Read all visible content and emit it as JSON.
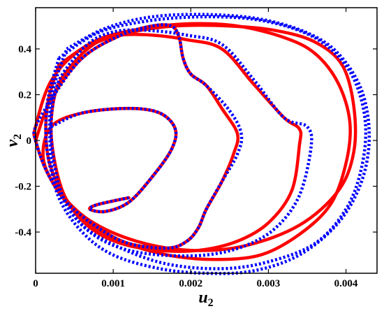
{
  "chart_data": {
    "type": "line",
    "title": "",
    "xlabel": "u",
    "xlabel_sub": "2",
    "ylabel": "v",
    "ylabel_sub": "2",
    "xlim": [
      0,
      0.0044
    ],
    "ylim": [
      -0.58,
      0.58
    ],
    "xticks": [
      {
        "v": 0,
        "label": "0"
      },
      {
        "v": 0.001,
        "label": "0.001"
      },
      {
        "v": 0.002,
        "label": "0.002"
      },
      {
        "v": 0.003,
        "label": "0.003"
      },
      {
        "v": 0.004,
        "label": "0.004"
      }
    ],
    "yticks": [
      {
        "v": -0.4,
        "label": "-0.4"
      },
      {
        "v": -0.2,
        "label": "-0.2"
      },
      {
        "v": 0,
        "label": "0"
      },
      {
        "v": 0.2,
        "label": "0.2"
      },
      {
        "v": 0.4,
        "label": "0.4"
      }
    ],
    "grid": false,
    "legend": "none",
    "series": [
      {
        "style": "solid",
        "color": "#ff0000",
        "x": [
          0.0,
          0.0002,
          0.0006,
          0.0011,
          0.0015,
          0.00175,
          0.00185,
          0.0019,
          0.002,
          0.0022,
          0.0024,
          0.0026,
          0.00255,
          0.0024,
          0.0022,
          0.0021,
          0.00195,
          0.0017,
          0.0012,
          0.0008,
          0.0004,
          0.00015,
          0.0,
          0.0,
          0.0002,
          0.0006,
          0.0012,
          0.0018,
          0.0025,
          0.0031,
          0.0036,
          0.00395,
          0.0041,
          0.0041,
          0.0039,
          0.0034,
          0.0027,
          0.002,
          0.0013,
          0.0007,
          0.0003,
          0.0001,
          0.0002,
          0.0006,
          0.0012,
          0.0016,
          0.0018,
          0.00175,
          0.0015,
          0.0012,
          0.0009,
          0.0007,
          0.0008,
          0.0012
        ],
        "y": [
          0.0,
          0.18,
          0.36,
          0.46,
          0.5,
          0.5,
          0.45,
          0.36,
          0.29,
          0.24,
          0.14,
          0.03,
          -0.06,
          -0.18,
          -0.3,
          -0.38,
          -0.44,
          -0.47,
          -0.45,
          -0.38,
          -0.27,
          -0.14,
          0.0,
          0.06,
          0.26,
          0.4,
          0.47,
          0.5,
          0.5,
          0.48,
          0.43,
          0.33,
          0.15,
          -0.05,
          -0.22,
          -0.37,
          -0.46,
          -0.48,
          -0.44,
          -0.35,
          -0.22,
          -0.08,
          0.06,
          0.12,
          0.14,
          0.12,
          0.05,
          -0.04,
          -0.16,
          -0.27,
          -0.31,
          -0.3,
          -0.28,
          -0.25
        ]
      },
      {
        "style": "solid",
        "color": "#ff0000",
        "x": [
          0.0006,
          0.0008,
          0.0011,
          0.0015,
          0.00195,
          0.0024,
          0.0028,
          0.0032,
          0.0034,
          0.0034,
          0.0033,
          0.003,
          0.0026,
          0.0021,
          0.0016,
          0.0011,
          0.0007,
          0.0004,
          0.00025,
          0.0002,
          0.0003,
          0.0006
        ],
        "y": [
          0.38,
          0.43,
          0.46,
          0.46,
          0.44,
          0.4,
          0.25,
          0.1,
          0.05,
          -0.02,
          -0.22,
          -0.36,
          -0.44,
          -0.48,
          -0.48,
          -0.45,
          -0.38,
          -0.26,
          -0.1,
          0.08,
          0.25,
          0.38
        ]
      },
      {
        "style": "solid",
        "color": "#ff0000",
        "x": [
          0.0003,
          0.0008,
          0.0014,
          0.002,
          0.0026,
          0.0032,
          0.0036,
          0.0039,
          0.00405,
          0.004,
          0.0038,
          0.0034,
          0.0029,
          0.0023,
          0.0017,
          0.0011,
          0.0006,
          0.0003,
          0.00015,
          0.00015,
          0.0003
        ],
        "y": [
          0.33,
          0.44,
          0.49,
          0.51,
          0.5,
          0.45,
          0.38,
          0.25,
          0.08,
          -0.1,
          -0.28,
          -0.41,
          -0.5,
          -0.52,
          -0.5,
          -0.44,
          -0.34,
          -0.2,
          -0.05,
          0.15,
          0.33
        ]
      },
      {
        "style": "dotted",
        "color": "#0000ff",
        "x": [
          0.0002,
          0.0006,
          0.0011,
          0.0015,
          0.00175,
          0.00185,
          0.0019,
          0.002,
          0.0022,
          0.0025,
          0.00265,
          0.0026,
          0.0024,
          0.0022,
          0.0021,
          0.00195,
          0.0017,
          0.0012,
          0.0008,
          0.0004,
          0.00015,
          0.0,
          0.0,
          0.0002
        ],
        "y": [
          0.18,
          0.36,
          0.46,
          0.5,
          0.5,
          0.45,
          0.36,
          0.29,
          0.24,
          0.13,
          0.03,
          -0.06,
          -0.18,
          -0.3,
          -0.38,
          -0.44,
          -0.47,
          -0.45,
          -0.38,
          -0.27,
          -0.14,
          0.0,
          0.06,
          0.18
        ]
      },
      {
        "style": "dotted",
        "color": "#0000ff",
        "x": [
          0.0002,
          0.0006,
          0.0012,
          0.0016,
          0.0018,
          0.00175,
          0.0015,
          0.0012,
          0.0009,
          0.0007,
          0.0008,
          0.0012
        ],
        "y": [
          0.06,
          0.12,
          0.14,
          0.12,
          0.05,
          -0.04,
          -0.16,
          -0.27,
          -0.31,
          -0.3,
          -0.28,
          -0.25
        ]
      },
      {
        "style": "dotted",
        "color": "#0000ff",
        "x": [
          0.0006,
          0.0008,
          0.0011,
          0.0015,
          0.00195,
          0.0024,
          0.0028,
          0.0032,
          0.0035,
          0.00355,
          0.0034,
          0.0031,
          0.0027,
          0.0022,
          0.0016,
          0.0011,
          0.0007,
          0.0004,
          0.00025,
          0.0002,
          0.0003,
          0.0006
        ],
        "y": [
          0.4,
          0.45,
          0.48,
          0.48,
          0.46,
          0.42,
          0.27,
          0.1,
          0.06,
          -0.03,
          -0.24,
          -0.38,
          -0.46,
          -0.5,
          -0.5,
          -0.47,
          -0.4,
          -0.28,
          -0.12,
          0.08,
          0.26,
          0.4
        ]
      },
      {
        "style": "dotted",
        "color": "#0000ff",
        "x": [
          0.0003,
          0.0008,
          0.0014,
          0.0021,
          0.0028,
          0.0034,
          0.0038,
          0.0041,
          0.00425,
          0.0042,
          0.004,
          0.0036,
          0.003,
          0.0024,
          0.0017,
          0.0011,
          0.0006,
          0.0003,
          0.00015,
          0.00015,
          0.0003
        ],
        "y": [
          0.36,
          0.47,
          0.52,
          0.54,
          0.53,
          0.48,
          0.4,
          0.27,
          0.08,
          -0.12,
          -0.3,
          -0.45,
          -0.53,
          -0.56,
          -0.54,
          -0.47,
          -0.37,
          -0.22,
          -0.05,
          0.16,
          0.36
        ]
      },
      {
        "style": "dotted",
        "color": "#0000ff",
        "x": [
          0.0004,
          0.0009,
          0.0015,
          0.0022,
          0.0029,
          0.0035,
          0.0039,
          0.0042,
          0.0043,
          0.0042,
          0.0039,
          0.0034,
          0.0028,
          0.0022,
          0.0016,
          0.001,
          0.0006,
          0.0003,
          0.0002,
          0.0002,
          0.0004
        ],
        "y": [
          0.4,
          0.49,
          0.54,
          0.55,
          0.53,
          0.47,
          0.38,
          0.22,
          0.02,
          -0.18,
          -0.36,
          -0.5,
          -0.57,
          -0.58,
          -0.56,
          -0.5,
          -0.4,
          -0.25,
          -0.08,
          0.18,
          0.4
        ]
      }
    ]
  }
}
